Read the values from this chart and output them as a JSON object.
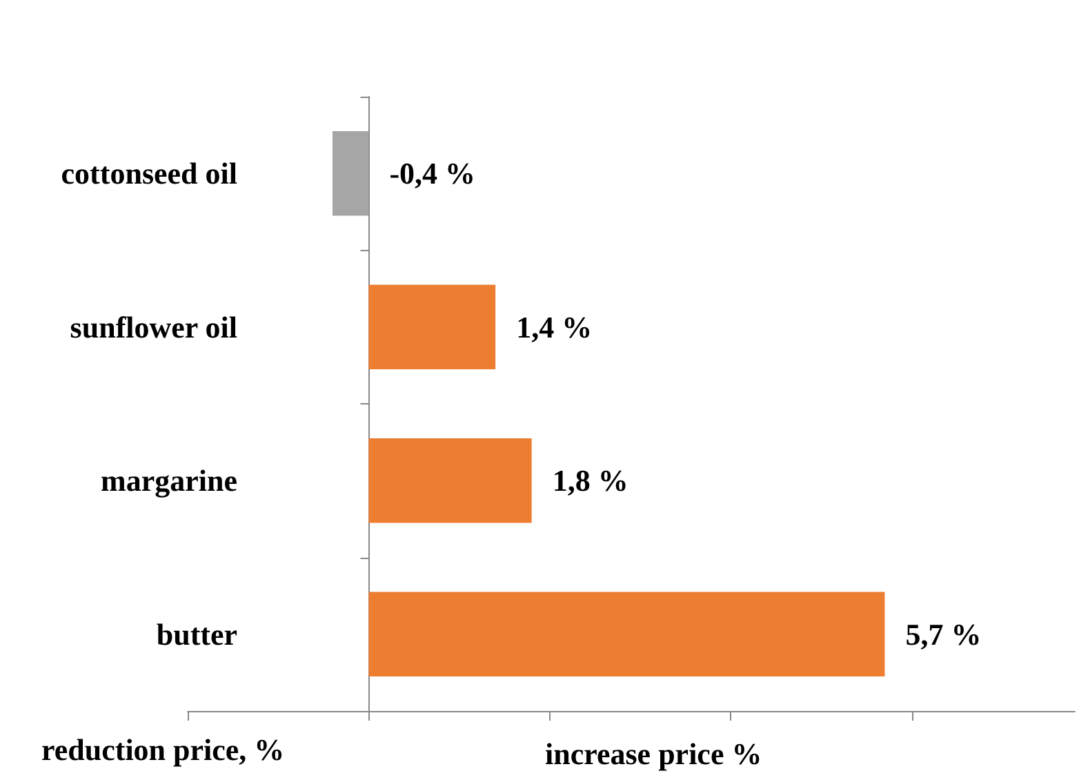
{
  "chart_data": {
    "type": "bar",
    "orientation": "horizontal",
    "categories": [
      "cottonseed oil",
      "sunflower oil",
      "margarine",
      "butter"
    ],
    "values": [
      -0.4,
      1.4,
      1.8,
      5.7
    ],
    "colors": [
      "#a6a6a6",
      "#ed7d31",
      "#ed7d31",
      "#ed7d31"
    ],
    "value_labels": [
      "-0,4 %",
      "1,4 %",
      "1,8 %",
      "5,7 %"
    ],
    "xlim": [
      -2,
      7.8
    ],
    "xticks": [
      {
        "value": -2,
        "label": null
      },
      {
        "value": 0,
        "label": null
      },
      {
        "value": 2,
        "label": null
      },
      {
        "value": 4,
        "label": null
      },
      {
        "value": 6,
        "label": null
      }
    ],
    "tick_labels": "y",
    "grid": false,
    "xlabel": "increase price %",
    "annotations": [
      "reduction price, %"
    ]
  }
}
